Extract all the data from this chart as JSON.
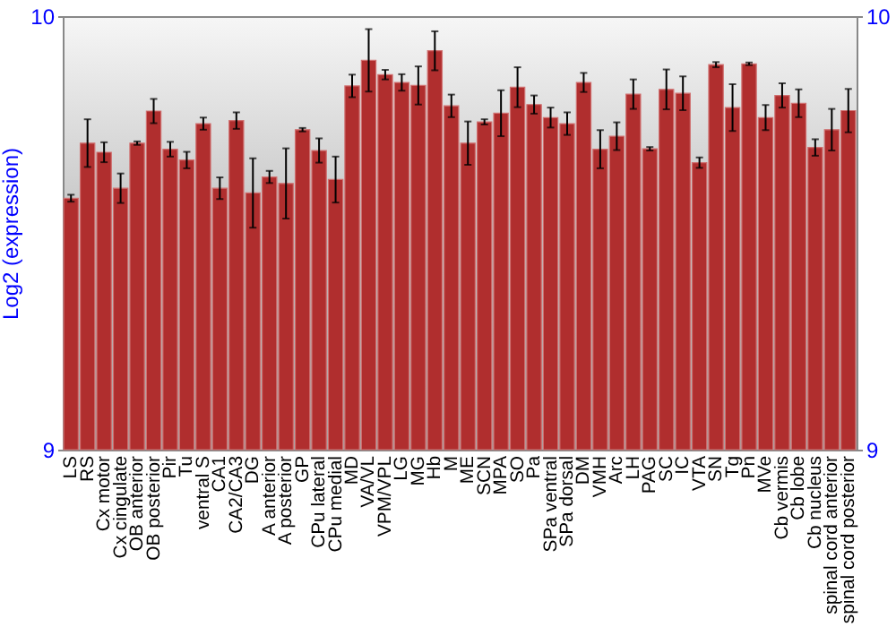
{
  "chart_data": {
    "type": "bar",
    "ylabel": "Log2 (expression)",
    "categories": [
      "LS",
      "RS",
      "Cx motor",
      "Cx cingulate",
      "OB anterior",
      "OB posterior",
      "Pir",
      "Tu",
      "ventral S",
      "CA1",
      "CA2/CA3",
      "DG",
      "A anterior",
      "A posterior",
      "GP",
      "CPu lateral",
      "CPu medial",
      "MD",
      "VA/VL",
      "VPM/VPL",
      "LG",
      "MG",
      "Hb",
      "M",
      "ME",
      "SCN",
      "MPA",
      "SO",
      "Pa",
      "SPa ventral",
      "SPa dorsal",
      "DM",
      "VMH",
      "Arc",
      "LH",
      "PAG",
      "SC",
      "IC",
      "VTA",
      "SN",
      "Tg",
      "Pn",
      "MVe",
      "Cb vermis",
      "Cb lobe",
      "Cb nucleus",
      "spinal cord anterior",
      "spinal cord posterior"
    ],
    "series": [
      {
        "color": "#b02e2e",
        "values": [
          9.58,
          9.707,
          9.686,
          9.603,
          9.707,
          9.781,
          9.693,
          9.668,
          9.752,
          9.603,
          9.759,
          9.592,
          9.629,
          9.614,
          9.738,
          9.69,
          9.623,
          9.839,
          9.898,
          9.865,
          9.847,
          9.84,
          9.92,
          9.793,
          9.707,
          9.756,
          9.776,
          9.836,
          9.796,
          9.766,
          9.752,
          9.847,
          9.693,
          9.723,
          9.82,
          9.694,
          9.831,
          9.822,
          9.662,
          9.888,
          9.789,
          9.89,
          9.766,
          9.817,
          9.799,
          9.697,
          9.738,
          9.782
        ],
        "errors": [
          0.008,
          0.055,
          0.023,
          0.034,
          0.004,
          0.028,
          0.017,
          0.019,
          0.014,
          0.025,
          0.019,
          0.08,
          0.014,
          0.081,
          0.004,
          0.028,
          0.053,
          0.026,
          0.072,
          0.011,
          0.019,
          0.044,
          0.045,
          0.026,
          0.05,
          0.006,
          0.053,
          0.046,
          0.021,
          0.023,
          0.026,
          0.022,
          0.044,
          0.032,
          0.034,
          0.004,
          0.046,
          0.039,
          0.012,
          0.006,
          0.054,
          0.003,
          0.029,
          0.028,
          0.032,
          0.019,
          0.048,
          0.05
        ]
      }
    ],
    "ylim": [
      9,
      10
    ],
    "yticks": [
      9,
      10
    ],
    "y2lim": [
      9,
      10
    ],
    "y2ticks": [
      9,
      10
    ]
  }
}
